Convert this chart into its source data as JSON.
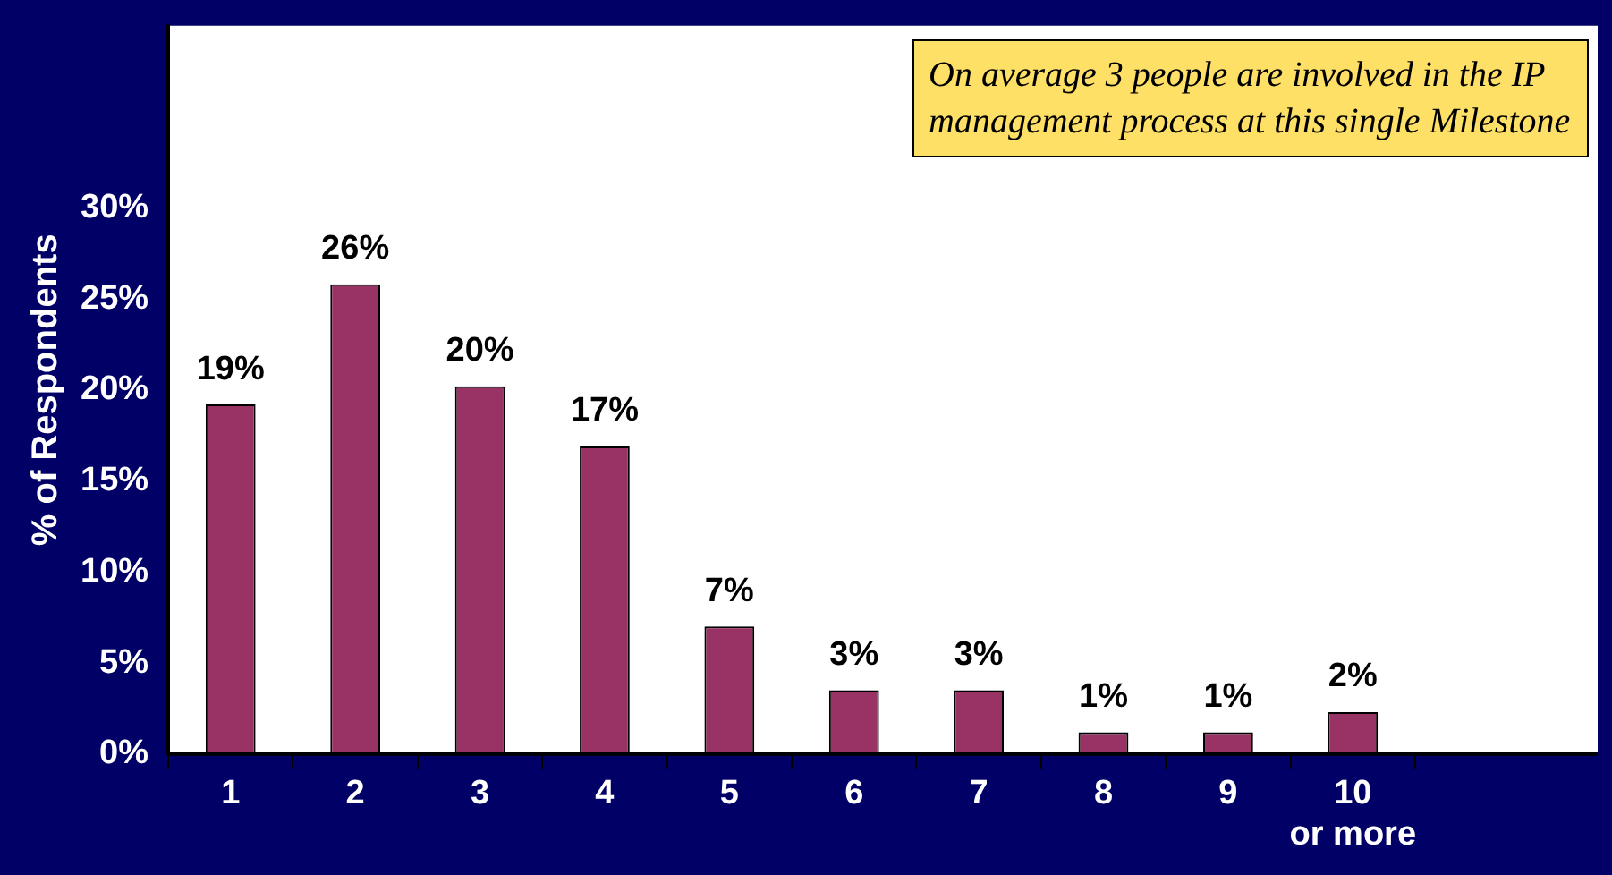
{
  "chart_data": {
    "type": "bar",
    "ylabel": "% of Respondents",
    "categories": [
      "1",
      "2",
      "3",
      "4",
      "5",
      "6",
      "7",
      "8",
      "9",
      "10 or more"
    ],
    "values": [
      19.2,
      25.8,
      20.2,
      16.9,
      7,
      3.5,
      3.5,
      1.2,
      1.2,
      2.3
    ],
    "value_labels": [
      "19%",
      "26%",
      "20%",
      "17%",
      "7%",
      "3%",
      "3%",
      "1%",
      "1%",
      "2%"
    ],
    "color": "#993366",
    "ylim": [
      0,
      40
    ],
    "yticks": [
      {
        "value": 0,
        "label": "0%"
      },
      {
        "value": 5,
        "label": "5%"
      },
      {
        "value": 10,
        "label": "10%"
      },
      {
        "value": 15,
        "label": "15%"
      },
      {
        "value": 20,
        "label": "20%"
      },
      {
        "value": 25,
        "label": "25%"
      },
      {
        "value": 30,
        "label": "30%"
      }
    ],
    "grid": false,
    "legend": false,
    "annotations": [
      "On average 3 people are involved in the IP management process at this single Milestone"
    ]
  }
}
